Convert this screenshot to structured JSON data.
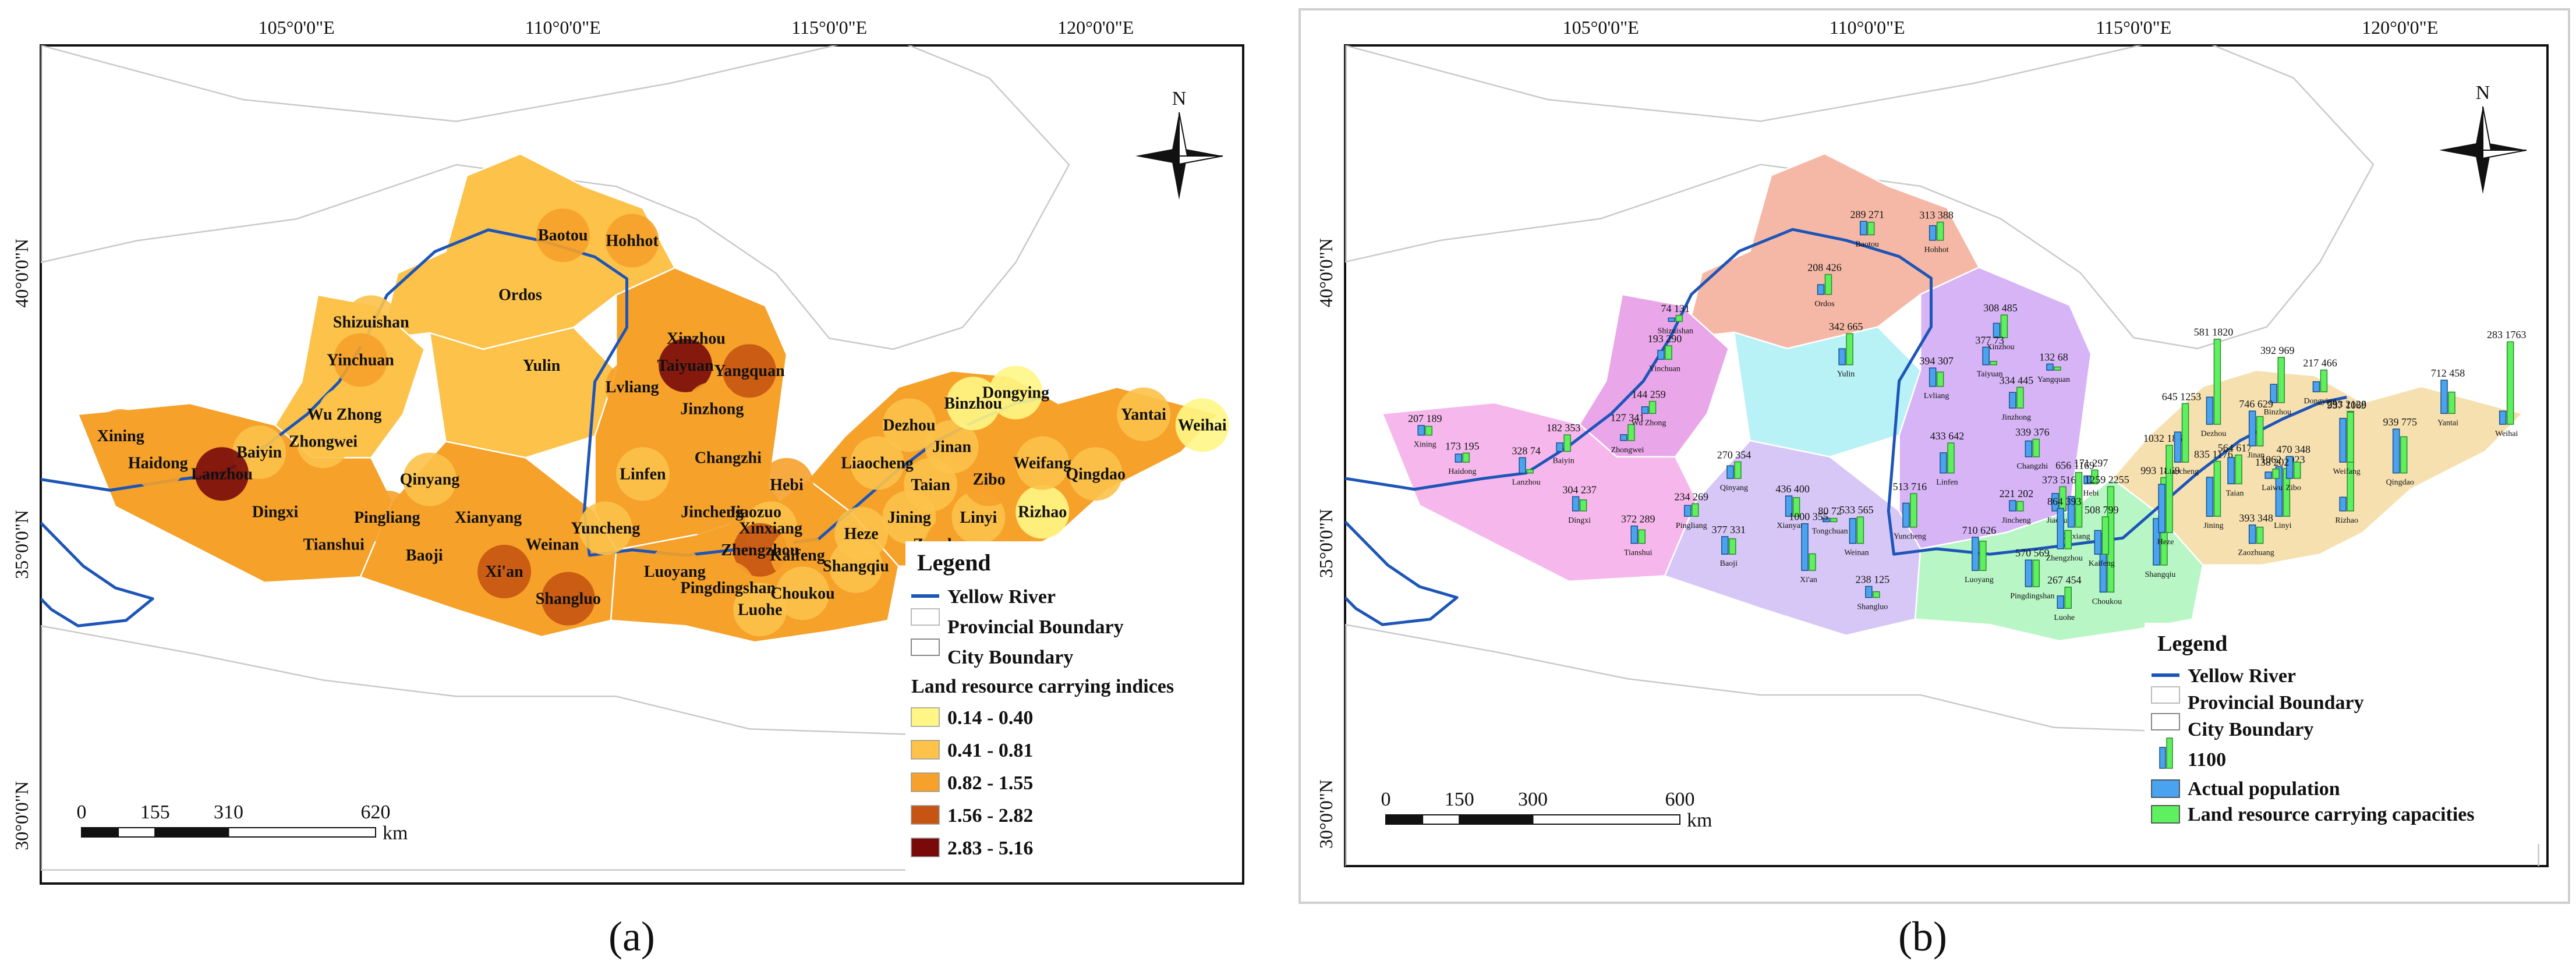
{
  "panel_a": {
    "caption": "(a)",
    "lon_labels": [
      "105°0'0\"E",
      "110°0'0\"E",
      "115°0'0\"E",
      "120°0'0\"E"
    ],
    "lat_labels": [
      "40°0'0\"N",
      "35°0'0\"N",
      "30°0'0\"N"
    ],
    "north": "N",
    "scale": {
      "ticks": [
        "0",
        "155",
        "310",
        "620"
      ],
      "unit": "km"
    },
    "legend": {
      "title": "Legend",
      "items": [
        "Yellow River",
        "Provincial Boundary",
        "City Boundary"
      ],
      "classes_title": "Land resource carrying indices",
      "classes": [
        {
          "label": "0.14 - 0.40",
          "color": "#fff685"
        },
        {
          "label": "0.41 - 0.81",
          "color": "#fcc24a"
        },
        {
          "label": "0.82 - 1.55",
          "color": "#f5a12a"
        },
        {
          "label": "1.56 - 2.82",
          "color": "#c65412"
        },
        {
          "label": "2.83 - 5.16",
          "color": "#7a0a0a"
        }
      ]
    },
    "cities": [
      {
        "name": "Baotou"
      },
      {
        "name": "Hohhot"
      },
      {
        "name": "Ordos"
      },
      {
        "name": "Shizuishan"
      },
      {
        "name": "Xinzhou"
      },
      {
        "name": "Yinchuan"
      },
      {
        "name": "Taiyuan"
      },
      {
        "name": "Yangquan"
      },
      {
        "name": "Yulin"
      },
      {
        "name": "Lvliang"
      },
      {
        "name": "Xining"
      },
      {
        "name": "Baiyin"
      },
      {
        "name": "Wu Zhong"
      },
      {
        "name": "Jinzhong"
      },
      {
        "name": "Haidong"
      },
      {
        "name": "Zhongwei"
      },
      {
        "name": "Lanzhou"
      },
      {
        "name": "Qinyang"
      },
      {
        "name": "Changzhi"
      },
      {
        "name": "Linfen"
      },
      {
        "name": "Hebi"
      },
      {
        "name": "Dingxi"
      },
      {
        "name": "Pingliang"
      },
      {
        "name": "Xianyang"
      },
      {
        "name": "Jincheng"
      },
      {
        "name": "Jiaozuo"
      },
      {
        "name": "Xinxiang"
      },
      {
        "name": "Yuncheng"
      },
      {
        "name": "Tianshui"
      },
      {
        "name": "Weinan"
      },
      {
        "name": "Baoji"
      },
      {
        "name": "Zhengzhou"
      },
      {
        "name": "Kaifeng"
      },
      {
        "name": "Xi'an"
      },
      {
        "name": "Luoyang"
      },
      {
        "name": "Shangluo"
      },
      {
        "name": "Pingdingshan"
      },
      {
        "name": "Choukou"
      },
      {
        "name": "Luohe"
      },
      {
        "name": "Shangqiu"
      },
      {
        "name": "Heze"
      },
      {
        "name": "Jining"
      },
      {
        "name": "Zaozhuang"
      },
      {
        "name": "Linyi"
      },
      {
        "name": "Liaocheng"
      },
      {
        "name": "Taian"
      },
      {
        "name": "Zibo"
      },
      {
        "name": "Rizhao"
      },
      {
        "name": "Dezhou"
      },
      {
        "name": "Jinan"
      },
      {
        "name": "Weifang"
      },
      {
        "name": "Qingdao"
      },
      {
        "name": "Binzhou"
      },
      {
        "name": "Dongying"
      },
      {
        "name": "Yantai"
      },
      {
        "name": "Weihai"
      }
    ]
  },
  "panel_b": {
    "caption": "(b)",
    "lon_labels": [
      "105°0'0\"E",
      "110°0'0\"E",
      "115°0'0\"E",
      "120°0'0\"E"
    ],
    "lat_labels": [
      "40°0'0\"N",
      "35°0'0\"N",
      "30°0'0\"N"
    ],
    "north": "N",
    "scale": {
      "ticks": [
        "0",
        "150",
        "300",
        "600"
      ],
      "unit": "km"
    },
    "legend": {
      "title": "Legend",
      "items": [
        "Yellow River",
        "Provincial Boundary",
        "City Boundary"
      ],
      "bar_key": "1100",
      "series": [
        {
          "label": "Actual population",
          "color": "#4aa3ef"
        },
        {
          "label": "Land resource carrying capacities",
          "color": "#5ef05e"
        }
      ]
    },
    "cities": [
      {
        "name": "Baotou",
        "pop": 289,
        "cap": 271
      },
      {
        "name": "Hohhot",
        "pop": 313,
        "cap": 388
      },
      {
        "name": "Ordos",
        "pop": 208,
        "cap": 426
      },
      {
        "name": "Shizuishan",
        "pop": 74,
        "cap": 131
      },
      {
        "name": "Xinzhou",
        "pop": 308,
        "cap": 485
      },
      {
        "name": "Yinchuan",
        "pop": 193,
        "cap": 290
      },
      {
        "name": "Taiyuan",
        "pop": 377,
        "cap": 73
      },
      {
        "name": "Yangquan",
        "pop": 132,
        "cap": 68
      },
      {
        "name": "Yulin",
        "pop": 342,
        "cap": 665
      },
      {
        "name": "Lvliang",
        "pop": 394,
        "cap": 307
      },
      {
        "name": "Jinzhong",
        "pop": 334,
        "cap": 445
      },
      {
        "name": "Zhongwei",
        "pop": 127,
        "cap": 341
      },
      {
        "name": "Wu Zhong",
        "pop": 144,
        "cap": 259
      },
      {
        "name": "Xining",
        "pop": 207,
        "cap": 189
      },
      {
        "name": "Baiyin",
        "pop": 182,
        "cap": 353
      },
      {
        "name": "Haidong",
        "pop": 173,
        "cap": 195
      },
      {
        "name": "Lanzhou",
        "pop": 328,
        "cap": 74
      },
      {
        "name": "Qinyang",
        "pop": 270,
        "cap": 354
      },
      {
        "name": "Changzhi",
        "pop": 339,
        "cap": 376
      },
      {
        "name": "Linfen",
        "pop": 433,
        "cap": 642
      },
      {
        "name": "Dingxi",
        "pop": 304,
        "cap": 237
      },
      {
        "name": "Pingliang",
        "pop": 234,
        "cap": 269
      },
      {
        "name": "Tianshui",
        "pop": 372,
        "cap": 289
      },
      {
        "name": "Tongchuan",
        "pop": 80,
        "cap": 72
      },
      {
        "name": "Xianyang",
        "pop": 436,
        "cap": 400
      },
      {
        "name": "Baoji",
        "pop": 377,
        "cap": 331
      },
      {
        "name": "Weinan",
        "pop": 533,
        "cap": 565
      },
      {
        "name": "Xi'an",
        "pop": 1000,
        "cap": 355
      },
      {
        "name": "Shangluo",
        "pop": 238,
        "cap": 125
      },
      {
        "name": "Yuncheng",
        "pop": 513,
        "cap": 716
      },
      {
        "name": "Jincheng",
        "pop": 221,
        "cap": 202
      },
      {
        "name": "Jiaozuo",
        "pop": 373,
        "cap": 516
      },
      {
        "name": "Hebi",
        "pop": 171,
        "cap": 297
      },
      {
        "name": "Xinxiang",
        "pop": 656,
        "cap": 1169
      },
      {
        "name": "Luoyang",
        "pop": 710,
        "cap": 626
      },
      {
        "name": "Zhengzhou",
        "pop": 864,
        "cap": 393
      },
      {
        "name": "Pingdingshan",
        "pop": 570,
        "cap": 569
      },
      {
        "name": "Luohe",
        "pop": 267,
        "cap": 454
      },
      {
        "name": "Choukou",
        "pop": 1259,
        "cap": 2255
      },
      {
        "name": "Kaifeng",
        "pop": 508,
        "cap": 799
      },
      {
        "name": "Shangqiu",
        "pop": 993,
        "cap": 1869
      },
      {
        "name": "Heze",
        "pop": 1032,
        "cap": 1865
      },
      {
        "name": "Jining",
        "pop": 835,
        "cap": 1176
      },
      {
        "name": "Zaozhuang",
        "pop": 393,
        "cap": 348
      },
      {
        "name": "Linyi",
        "pop": 1062,
        "cap": 1023
      },
      {
        "name": "Rizhao",
        "pop": 293,
        "cap": 2128
      },
      {
        "name": "Liaocheng",
        "pop": 645,
        "cap": 1253
      },
      {
        "name": "Dezhou",
        "pop": 581,
        "cap": 1820
      },
      {
        "name": "Taian",
        "pop": 564,
        "cap": 617
      },
      {
        "name": "Binzhou",
        "pop": 392,
        "cap": 969
      },
      {
        "name": "Jinan",
        "pop": 746,
        "cap": 629
      },
      {
        "name": "Zibo",
        "pop": 470,
        "cap": 348
      },
      {
        "name": "Laiwu",
        "pop": 138,
        "cap": 202
      },
      {
        "name": "Weifang",
        "pop": 937,
        "cap": 1069
      },
      {
        "name": "Dongying",
        "pop": 217,
        "cap": 466
      },
      {
        "name": "Qingdao",
        "pop": 939,
        "cap": 775
      },
      {
        "name": "Yantai",
        "pop": 712,
        "cap": 458
      },
      {
        "name": "Weihai",
        "pop": 283,
        "cap": 1763
      }
    ]
  }
}
